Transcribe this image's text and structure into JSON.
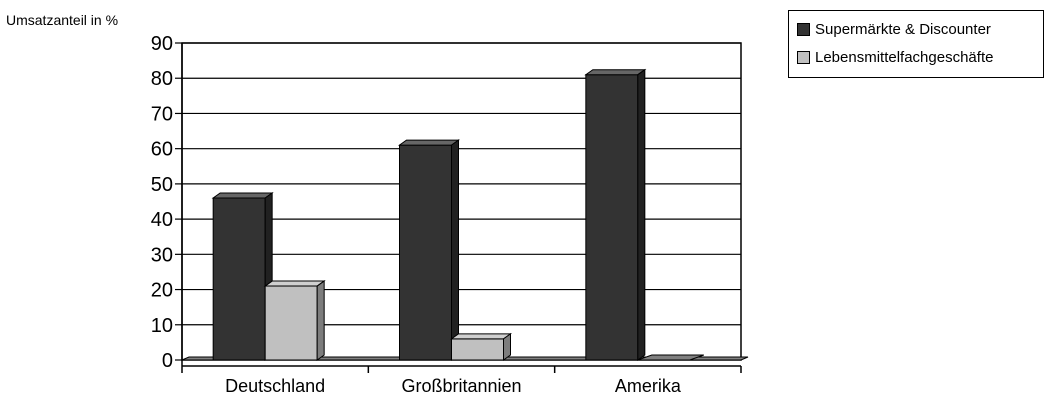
{
  "chart_data": {
    "type": "bar",
    "ylabel": "Umsatzanteil in %",
    "categories": [
      "Deutschland",
      "Großbritannien",
      "Amerika"
    ],
    "series": [
      {
        "name": "Supermärkte & Discounter",
        "color": "#333333",
        "values": [
          46,
          61,
          81
        ]
      },
      {
        "name": "Lebensmittelfachgeschäfte",
        "color": "#c0c0c0",
        "values": [
          21,
          6,
          0
        ]
      }
    ],
    "ylim": [
      0,
      90
    ],
    "yticks": [
      0,
      10,
      20,
      30,
      40,
      50,
      60,
      70,
      80,
      90
    ],
    "grid": true,
    "legend_position": "top-right",
    "style": "3d-clustered"
  }
}
